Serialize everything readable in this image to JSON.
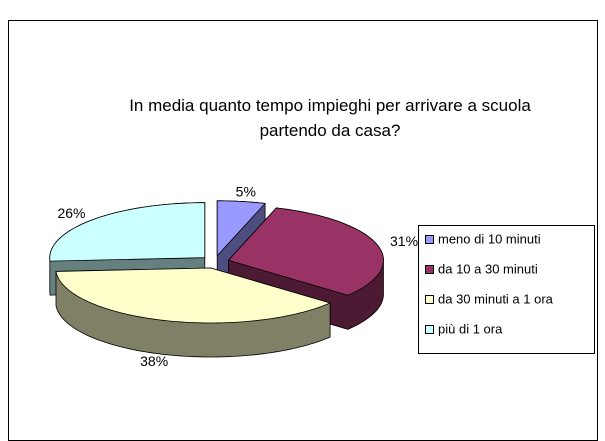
{
  "chart_data": {
    "type": "pie3d",
    "title": "In media quanto tempo impieghi per arrivare a scuola partendo da casa?",
    "categories": [
      "meno di 10 minuti",
      "da 10 a 30 minuti",
      "da 30 minuti a 1 ora",
      "più di 1 ora"
    ],
    "values": [
      5,
      31,
      38,
      26
    ],
    "value_labels": [
      "5%",
      "31%",
      "38%",
      "26%"
    ],
    "colors": [
      "#9999ff",
      "#993366",
      "#ffffcc",
      "#ccffff"
    ],
    "legend": "right"
  }
}
